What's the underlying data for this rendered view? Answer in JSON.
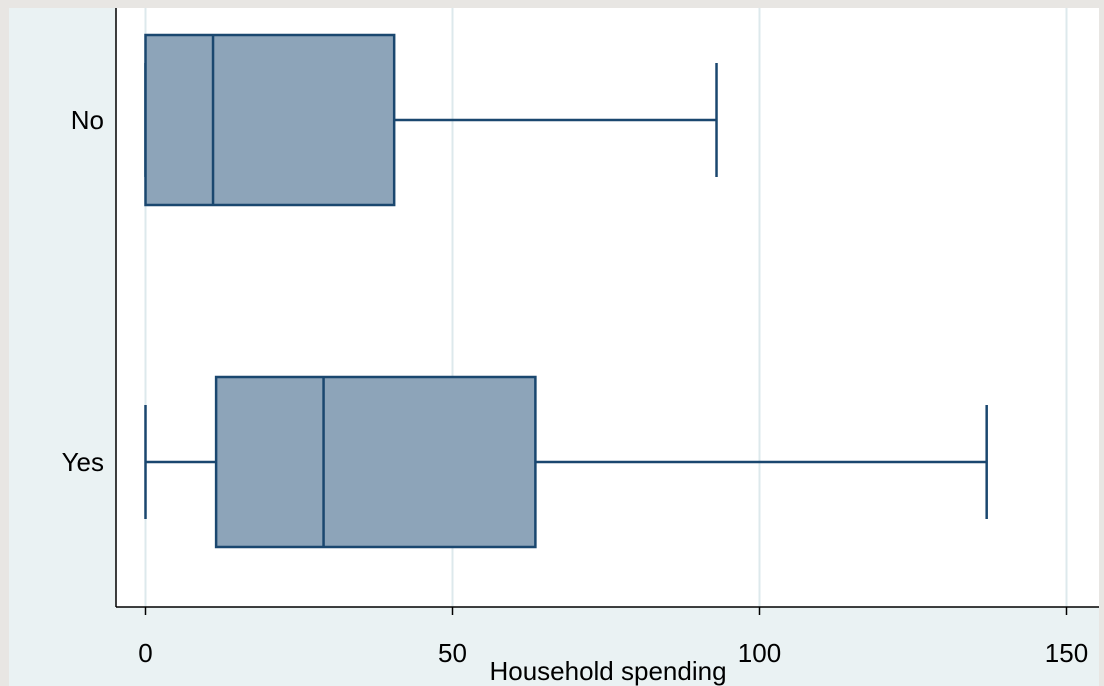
{
  "chart_data": {
    "type": "boxplot",
    "orientation": "horizontal",
    "xlabel": "Household spending",
    "xlim": [
      -9.5,
      152.5
    ],
    "xticks": [
      0,
      50,
      100,
      150
    ],
    "xtick_labels": [
      "0",
      "50",
      "100",
      "150"
    ],
    "grid": true,
    "categories": [
      "No",
      "Yes"
    ],
    "boxes": [
      {
        "category": "No",
        "whisker_low": 0,
        "q1": 0,
        "median": 11,
        "q3": 40.5,
        "whisker_high": 93
      },
      {
        "category": "Yes",
        "whisker_low": 0,
        "q1": 11.5,
        "median": 29,
        "q3": 63.5,
        "whisker_high": 137
      }
    ],
    "colors": {
      "background": "#e8e6e3",
      "plot_background": "#eaf2f3",
      "inner_plot": "#ffffff",
      "gridline": "#dde9ec",
      "box_fill": "#8da4b9",
      "box_stroke": "#1a476f",
      "axis": "#000000"
    }
  }
}
